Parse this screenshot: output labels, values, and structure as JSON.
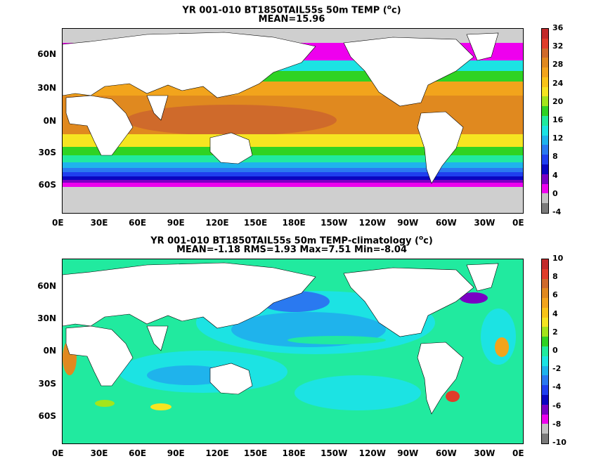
{
  "panels": [
    {
      "title_line1_pre": "YR 001-010 BT1850TAIL55s 50m TEMP (",
      "title_line1_unit_sup": "o",
      "title_line1_post": "c)",
      "title_line2": "MEAN=15.96",
      "colorbar_labels": [
        "36",
        "32",
        "28",
        "24",
        "20",
        "16",
        "12",
        "8",
        "4",
        "0",
        "-4"
      ],
      "colorbar_colors": [
        "#c22a2a",
        "#e03d2a",
        "#cf6a2b",
        "#e0891f",
        "#f2a41c",
        "#f9c418",
        "#f6e521",
        "#a4e51b",
        "#2fd323",
        "#21ea9f",
        "#1ce3e3",
        "#1fb3ec",
        "#2a79f0",
        "#1f3fef",
        "#0a06c0",
        "#7a00c4",
        "#ee00ee",
        "#c2c2c2",
        "#7a7a7a"
      ]
    },
    {
      "title_line1_pre": "YR 001-010 BT1850TAIL55s 50m TEMP-climatology (",
      "title_line1_unit_sup": "o",
      "title_line1_post": "c)",
      "title_line2": "MEAN=-1.18   RMS=1.93   Max=7.51   Min=-8.04",
      "colorbar_labels": [
        "10",
        "8",
        "6",
        "4",
        "2",
        "0",
        "-2",
        "-4",
        "-6",
        "-8",
        "-10"
      ],
      "colorbar_colors": [
        "#c22a2a",
        "#e03d2a",
        "#cf6a2b",
        "#e0891f",
        "#f2a41c",
        "#f9c418",
        "#f6e521",
        "#a4e51b",
        "#2fd323",
        "#21ea9f",
        "#1ce3e3",
        "#1fb3ec",
        "#2a79f0",
        "#1f3fef",
        "#0a06c0",
        "#7a00c4",
        "#ee00ee",
        "#c2c2c2",
        "#7a7a7a"
      ]
    }
  ],
  "lon_labels": [
    "0E",
    "30E",
    "60E",
    "90E",
    "120E",
    "150E",
    "180E",
    "150W",
    "120W",
    "90W",
    "60W",
    "30W",
    "0E"
  ],
  "lat_labels": [
    "60N",
    "30N",
    "0N",
    "30S",
    "60S"
  ]
}
